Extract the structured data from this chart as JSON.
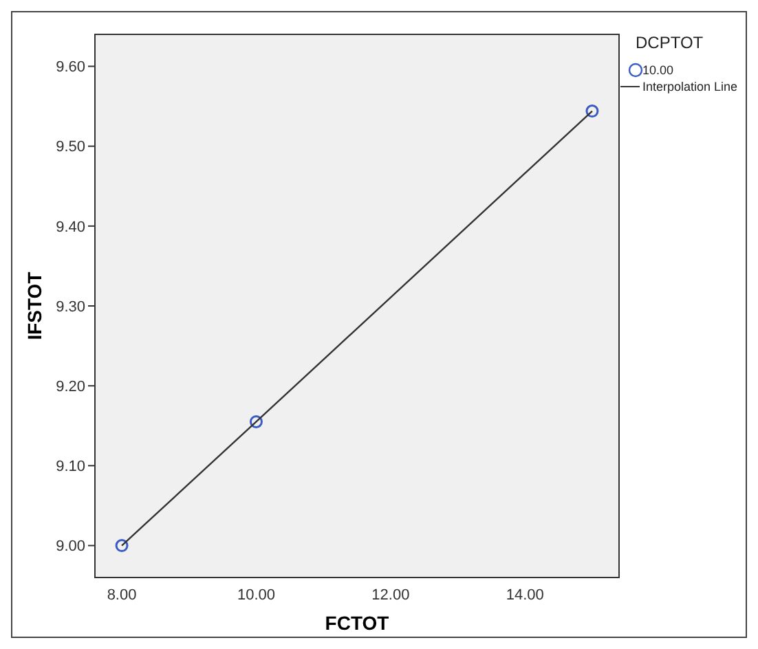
{
  "chart_data": {
    "type": "scatter",
    "xlabel": "FCTOT",
    "ylabel": "IFSTOT",
    "legend_title": "DCPTOT",
    "legend": "right",
    "marker": "circle",
    "grid": false,
    "xlim": [
      7.6,
      15.4
    ],
    "xticks": [
      {
        "value": 8,
        "label": "8.00"
      },
      {
        "value": 10,
        "label": "10.00"
      },
      {
        "value": 12,
        "label": "12.00"
      },
      {
        "value": 14,
        "label": "14.00"
      }
    ],
    "ylim": [
      8.96,
      9.64
    ],
    "yticks": [
      {
        "value": 9.0,
        "label": "9.00"
      },
      {
        "value": 9.1,
        "label": "9.10"
      },
      {
        "value": 9.2,
        "label": "9.20"
      },
      {
        "value": 9.3,
        "label": "9.30"
      },
      {
        "value": 9.4,
        "label": "9.40"
      },
      {
        "value": 9.5,
        "label": "9.50"
      },
      {
        "value": 9.6,
        "label": "9.60"
      }
    ],
    "series": [
      {
        "name": "10.00",
        "color": "#3b5bc4",
        "x": [
          8,
          10,
          15
        ],
        "values": [
          9.0,
          9.155,
          9.544
        ]
      },
      {
        "name": "Interpolation Line",
        "type": "line",
        "color": "#333333",
        "line_style": "solid",
        "marker": "none",
        "x": [
          8,
          10,
          15
        ],
        "values": [
          9.0,
          9.155,
          9.544
        ]
      }
    ]
  }
}
